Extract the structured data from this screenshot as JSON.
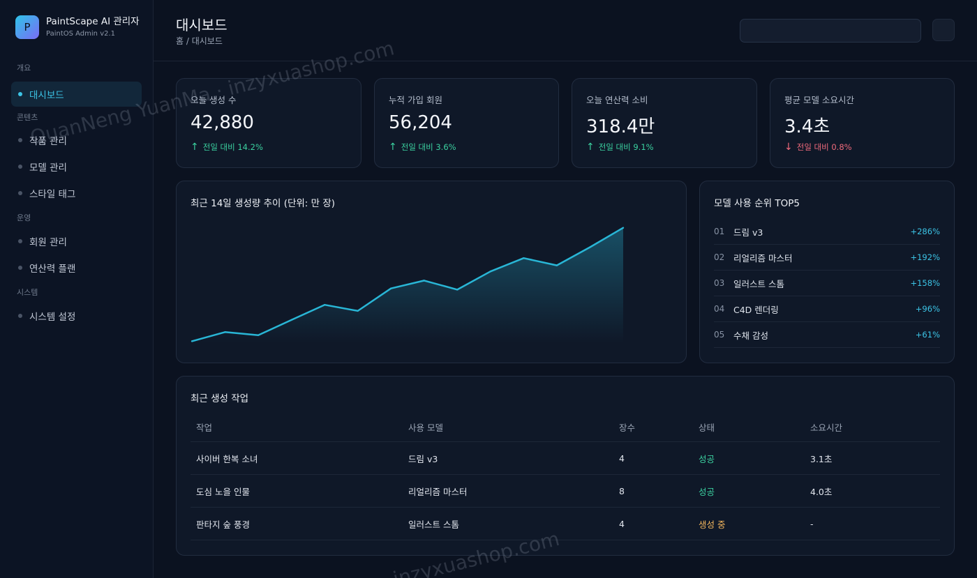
{
  "brand": {
    "logo_letter": "P",
    "title": "PaintScape AI 관리자",
    "subtitle": "PaintOS Admin v2.1"
  },
  "sidebar": {
    "groups": [
      {
        "label": "개요",
        "items": [
          {
            "label": "대시보드",
            "active": true
          }
        ]
      },
      {
        "label": "콘텐츠",
        "items": [
          {
            "label": "작품 관리"
          },
          {
            "label": "모델 관리"
          },
          {
            "label": "스타일 태그"
          }
        ]
      },
      {
        "label": "운영",
        "items": [
          {
            "label": "회원 관리"
          },
          {
            "label": "연산력 플랜"
          }
        ]
      },
      {
        "label": "시스템",
        "items": [
          {
            "label": "시스템 설정"
          }
        ]
      }
    ]
  },
  "header": {
    "title": "대시보드",
    "breadcrumb": "홈 / 대시보드",
    "search_value": ""
  },
  "stats": [
    {
      "label": "오늘 생성 수",
      "value": "42,880",
      "arrow": "↑",
      "delta": "전일 대비 14.2%",
      "trend": "up"
    },
    {
      "label": "누적 가입 회원",
      "value": "56,204",
      "arrow": "↑",
      "delta": "전일 대비 3.6%",
      "trend": "up"
    },
    {
      "label": "오늘 연산력 소비",
      "value": "318.4만",
      "arrow": "↑",
      "delta": "전일 대비 9.1%",
      "trend": "up"
    },
    {
      "label": "평균 모델 소요시간",
      "value": "3.4초",
      "arrow": "↓",
      "delta": "전일 대비 0.8%",
      "trend": "down"
    }
  ],
  "trend_chart": {
    "title": "최근 14일 생성량 추이 (단위: 만 장)",
    "line_color": "#29b6d6"
  },
  "chart_data": {
    "type": "area",
    "title": "최근 14일 생성량 추이 (단위: 만 장)",
    "x": [
      1,
      2,
      3,
      4,
      5,
      6,
      7,
      8,
      9,
      10,
      11,
      12,
      13,
      14
    ],
    "values": [
      0.3,
      1.8,
      1.3,
      3.8,
      6.3,
      5.3,
      9.0,
      10.3,
      8.8,
      11.8,
      14.0,
      12.8,
      15.8,
      19.0
    ],
    "ylim": [
      0,
      20
    ],
    "grid": false,
    "legend": "none"
  },
  "ranking": {
    "title": "모델 사용 순위 TOP5",
    "rows": [
      {
        "no": "01",
        "name": "드림 v3",
        "change": "+286%"
      },
      {
        "no": "02",
        "name": "리얼리즘 마스터",
        "change": "+192%"
      },
      {
        "no": "03",
        "name": "일러스트 스톰",
        "change": "+158%"
      },
      {
        "no": "04",
        "name": "C4D 렌더링",
        "change": "+96%"
      },
      {
        "no": "05",
        "name": "수채 감성",
        "change": "+61%"
      }
    ]
  },
  "recent_jobs": {
    "title": "최근 생성 작업",
    "columns": [
      "작업",
      "사용 모델",
      "장수",
      "상태",
      "소요시간"
    ],
    "rows": [
      {
        "task": "사이버 한복 소녀",
        "model": "드림 v3",
        "count": "4",
        "status": "성공",
        "status_type": "success",
        "time": "3.1초"
      },
      {
        "task": "도심 노을 인물",
        "model": "리얼리즘 마스터",
        "count": "8",
        "status": "성공",
        "status_type": "success",
        "time": "4.0초"
      },
      {
        "task": "판타지 숲 풍경",
        "model": "일러스트 스톰",
        "count": "4",
        "status": "생성 중",
        "status_type": "progress",
        "time": "-"
      }
    ]
  },
  "watermarks": [
    "QuanNeng YuanMa · inzyxuashop.com",
    "inzyxuashop.com"
  ]
}
